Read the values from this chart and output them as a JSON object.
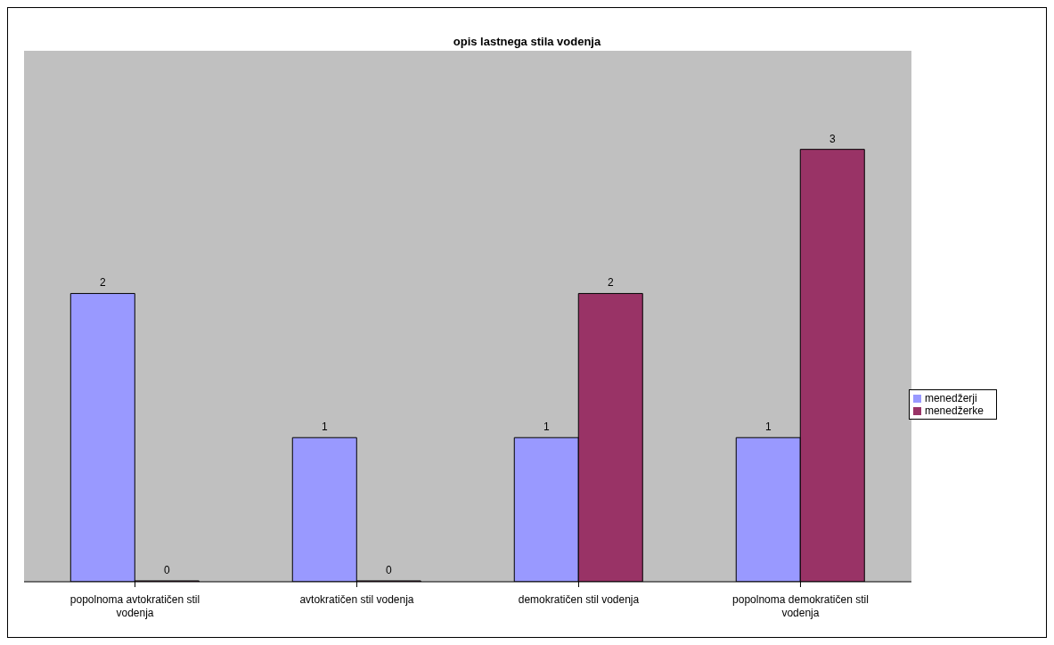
{
  "chart_data": {
    "type": "bar",
    "title": "opis lastnega stila vodenja",
    "categories": [
      "popolnoma avtokratičen stil vodenja",
      "avtokratičen stil vodenja",
      "demokratičen stil vodenja",
      "popolnoma demokratičen stil vodenja"
    ],
    "series": [
      {
        "name": "menedžerji",
        "color": "#9999ff",
        "values": [
          2,
          1,
          1,
          1
        ]
      },
      {
        "name": "menedžerke",
        "color": "#993366",
        "values": [
          0,
          0,
          2,
          3
        ]
      }
    ],
    "data_labels": true,
    "legend": "right",
    "grid": false
  }
}
